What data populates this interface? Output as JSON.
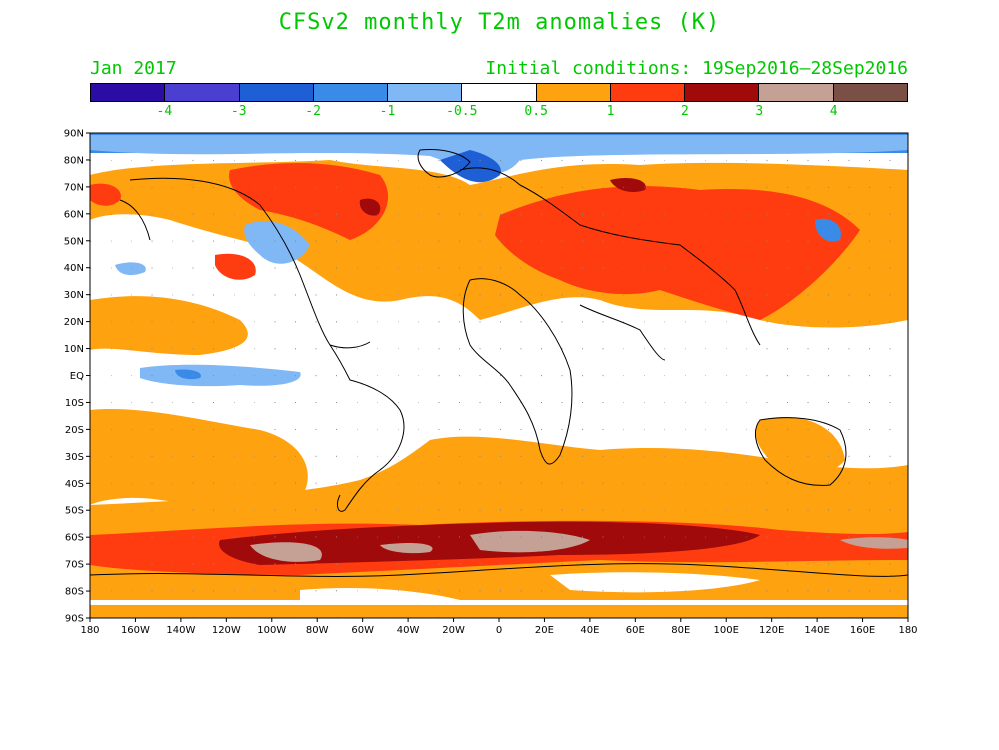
{
  "title": "CFSv2 monthly T2m anomalies (K)",
  "month_label": "Jan 2017",
  "initial_conditions": "Initial conditions: 19Sep2016–28Sep2016",
  "colorbar": {
    "colors": [
      "#2b0da6",
      "#4a3fd0",
      "#1e5fd6",
      "#3a8ae8",
      "#7fb8f4",
      "#ffffff",
      "#ffa20f",
      "#ff3c10",
      "#a00a0a",
      "#c4a095",
      "#7a5046"
    ],
    "tick_labels": [
      "-4",
      "-3",
      "-2",
      "-1",
      "-0.5",
      "0.5",
      "1",
      "2",
      "3",
      "4"
    ]
  },
  "map": {
    "lat_labels": [
      "90N",
      "80N",
      "70N",
      "60N",
      "50N",
      "40N",
      "30N",
      "20N",
      "10N",
      "EQ",
      "10S",
      "20S",
      "30S",
      "40S",
      "50S",
      "60S",
      "70S",
      "80S",
      "90S"
    ],
    "lon_labels": [
      "180",
      "160W",
      "140W",
      "120W",
      "100W",
      "80W",
      "60W",
      "40W",
      "20W",
      "0",
      "20E",
      "40E",
      "60E",
      "80E",
      "100E",
      "120E",
      "140E",
      "160E",
      "180"
    ]
  }
}
